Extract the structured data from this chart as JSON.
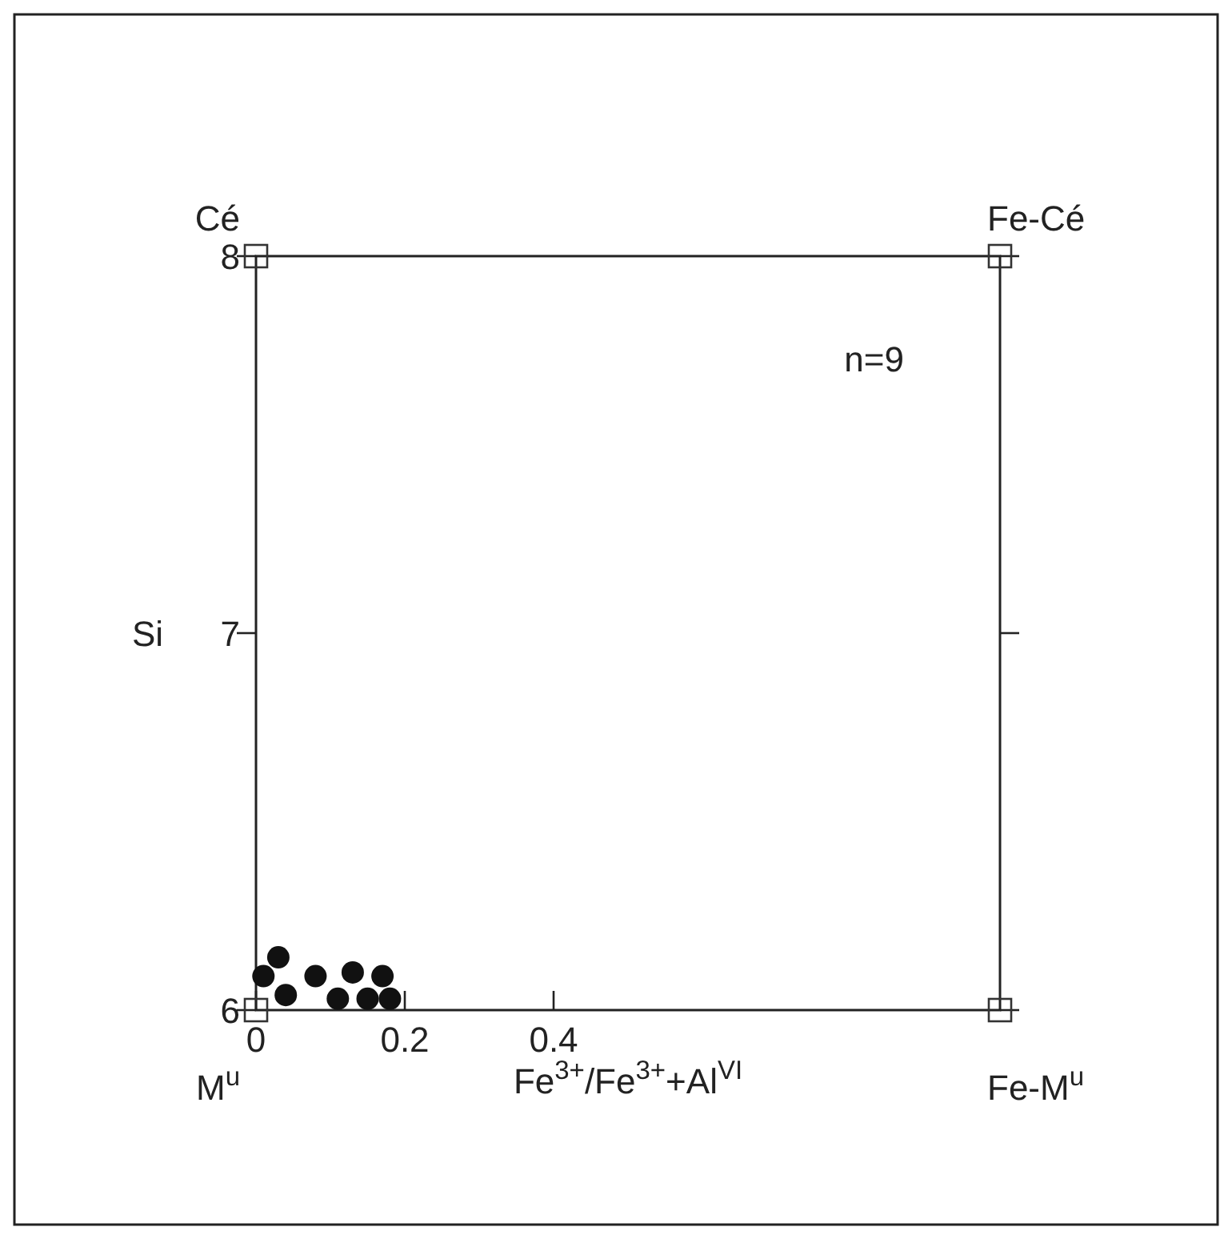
{
  "chart_data": {
    "type": "scatter",
    "xlabel": "Fe$^{3+}$/Fe$^{3+}$+Al$^{VI}$",
    "ylabel": "Si",
    "xlim": [
      0,
      1
    ],
    "ylim": [
      6,
      8
    ],
    "xticks": [
      0,
      0.2,
      0.4
    ],
    "yticks": [
      6,
      7,
      8
    ],
    "grid": false,
    "series": [
      {
        "marker": "circle",
        "color": "#111111",
        "x": [
          0.03,
          0.01,
          0.04,
          0.08,
          0.13,
          0.17,
          0.11,
          0.15,
          0.18
        ],
        "values": [
          6.14,
          6.09,
          6.04,
          6.09,
          6.1,
          6.09,
          6.03,
          6.03,
          6.03
        ]
      },
      {
        "marker": "square",
        "color": "#333333",
        "x": [
          0,
          1,
          0,
          1
        ],
        "values": [
          8,
          8,
          6,
          6
        ]
      }
    ],
    "annotations": [
      "Cé",
      "Fe-Cé",
      "M$^{u}$",
      "Fe-M$^{u}$",
      "n=9"
    ]
  }
}
